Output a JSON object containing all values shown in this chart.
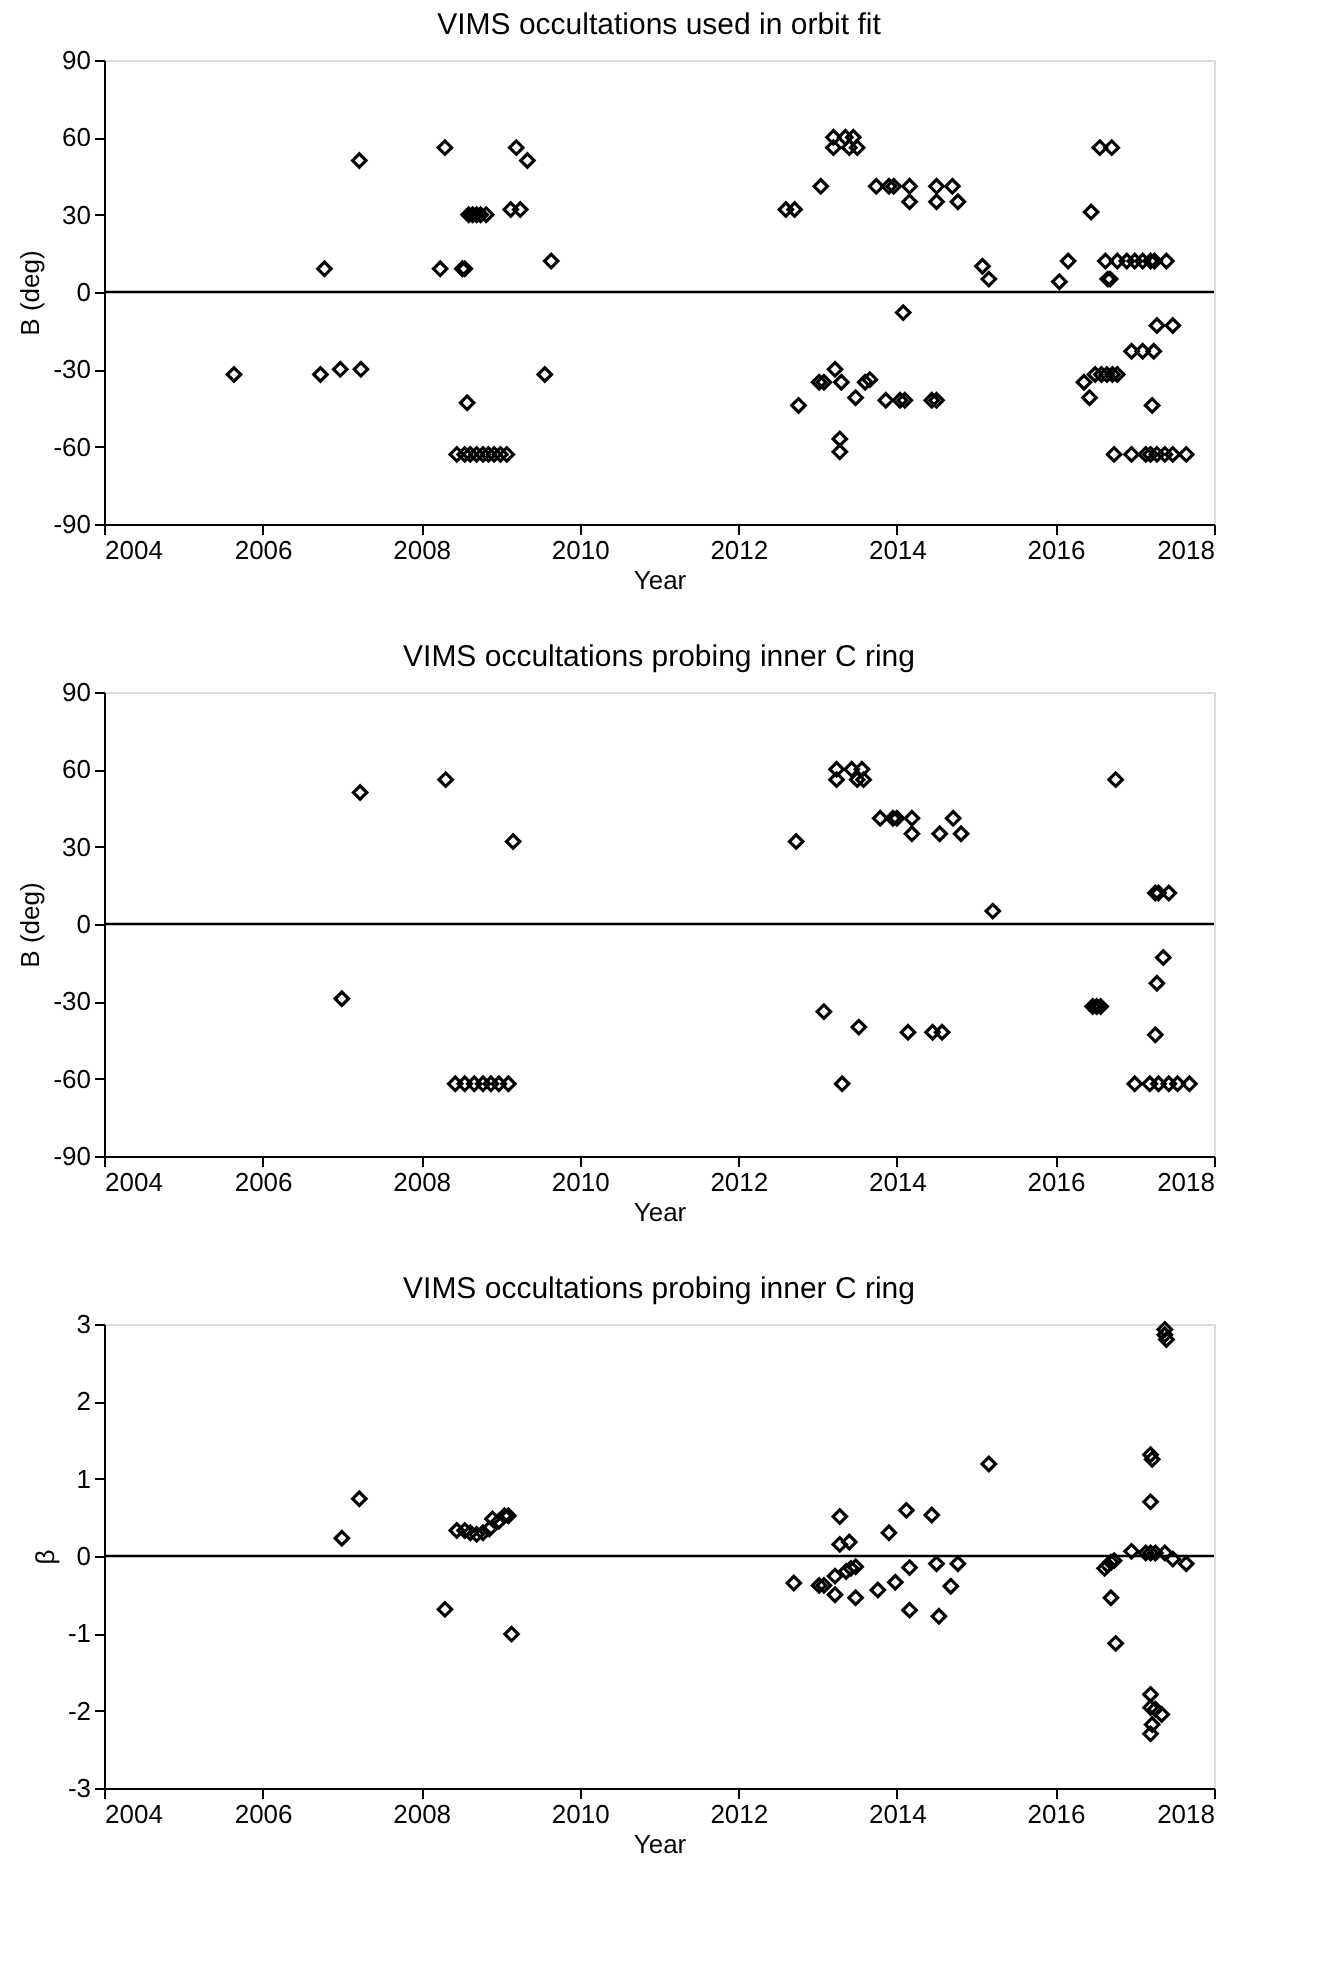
{
  "chart_data": [
    {
      "type": "scatter",
      "title": "VIMS occultations used in orbit fit",
      "xlabel": "Year",
      "ylabel": "B (deg)",
      "marker": "diamond",
      "grid": false,
      "xlim": [
        2004,
        2018
      ],
      "xticks": [
        2004,
        2006,
        2008,
        2010,
        2012,
        2014,
        2016,
        2018
      ],
      "ylim": [
        -90,
        90
      ],
      "yticks": [
        -90,
        -60,
        -30,
        0,
        30,
        60,
        90
      ],
      "ref_lines": [
        {
          "axis": "y",
          "value": 0,
          "color": "#000000"
        }
      ],
      "series": [
        {
          "color": "#000000",
          "x": [
            2005.64,
            2006.78,
            2006.73,
            2006.98,
            2007.22,
            2007.24,
            2008.3,
            2008.24,
            2008.52,
            2008.55,
            2008.58,
            2008.6,
            2008.65,
            2008.7,
            2008.75,
            2008.82,
            2008.45,
            2008.55,
            2008.62,
            2008.7,
            2008.78,
            2008.85,
            2008.92,
            2009.0,
            2009.08,
            2009.2,
            2009.34,
            2009.13,
            2009.25,
            2009.64,
            2009.56,
            2012.6,
            2012.71,
            2012.76,
            2013.04,
            2013.2,
            2013.2,
            2013.35,
            2013.4,
            2013.5,
            2013.45,
            2013.02,
            2013.08,
            2013.22,
            2013.3,
            2013.28,
            2013.28,
            2013.48,
            2013.6,
            2013.66,
            2013.74,
            2013.9,
            2013.96,
            2013.86,
            2014.04,
            2014.1,
            2014.08,
            2014.16,
            2014.16,
            2014.5,
            2014.5,
            2014.7,
            2014.77,
            2014.44,
            2014.5,
            2015.08,
            2015.16,
            2016.05,
            2016.16,
            2016.45,
            2016.36,
            2016.43,
            2016.5,
            2016.58,
            2016.65,
            2016.72,
            2016.78,
            2016.56,
            2016.71,
            2016.63,
            2016.78,
            2016.9,
            2017.0,
            2017.1,
            2017.2,
            2017.25,
            2017.4,
            2016.66,
            2016.69,
            2016.96,
            2017.1,
            2017.24,
            2017.28,
            2017.48,
            2017.22,
            2016.74,
            2016.96,
            2017.14,
            2017.2,
            2017.28,
            2017.38,
            2017.48,
            2017.65
          ],
          "values": [
            -32,
            9,
            -32,
            -30,
            51,
            -30,
            56,
            9,
            9,
            9,
            -43,
            30,
            30,
            30,
            30,
            30,
            -63,
            -63,
            -63,
            -63,
            -63,
            -63,
            -63,
            -63,
            -63,
            56,
            51,
            32,
            32,
            12,
            -32,
            32,
            32,
            -44,
            41,
            60,
            56,
            60,
            56,
            56,
            60,
            -35,
            -35,
            -30,
            -35,
            -57,
            -62,
            -41,
            -35,
            -34,
            41,
            41,
            41,
            -42,
            -42,
            -42,
            -8,
            41,
            35,
            41,
            35,
            41,
            35,
            -42,
            -42,
            10,
            5,
            4,
            12,
            31,
            -35,
            -41,
            -32,
            -32,
            -32,
            -32,
            -32,
            56,
            56,
            12,
            12,
            12,
            12,
            12,
            12,
            12,
            12,
            5,
            5,
            -23,
            -23,
            -23,
            -13,
            -13,
            -44,
            -63,
            -63,
            -63,
            -63,
            -63,
            -63,
            -63,
            -63
          ]
        }
      ]
    },
    {
      "type": "scatter",
      "title": "VIMS occultations probing inner C ring",
      "xlabel": "Year",
      "ylabel": "B (deg)",
      "marker": "diamond",
      "grid": false,
      "xlim": [
        2004,
        2018
      ],
      "xticks": [
        2004,
        2006,
        2008,
        2010,
        2012,
        2014,
        2016,
        2018
      ],
      "ylim": [
        -90,
        90
      ],
      "yticks": [
        -90,
        -60,
        -30,
        0,
        30,
        60,
        90
      ],
      "ref_lines": [
        {
          "axis": "y",
          "value": 0,
          "color": "#000000"
        }
      ],
      "series": [
        {
          "color": "#000000",
          "x": [
            2007.0,
            2007.23,
            2008.31,
            2009.16,
            2008.43,
            2008.55,
            2008.67,
            2008.78,
            2008.88,
            2008.98,
            2009.1,
            2012.73,
            2013.24,
            2013.24,
            2013.43,
            2013.56,
            2013.5,
            2013.58,
            2013.08,
            2013.31,
            2013.52,
            2013.79,
            2013.95,
            2014.0,
            2014.19,
            2014.19,
            2014.14,
            2014.45,
            2014.57,
            2014.54,
            2014.71,
            2014.81,
            2015.21,
            2016.47,
            2016.52,
            2016.57,
            2016.76,
            2017.26,
            2017.3,
            2017.43,
            2017.36,
            2017.28,
            2017.26,
            2017.0,
            2017.19,
            2017.3,
            2017.43,
            2017.54,
            2017.69
          ],
          "values": [
            -29,
            51,
            56,
            32,
            -62,
            -62,
            -62,
            -62,
            -62,
            -62,
            -62,
            32,
            60,
            56,
            60,
            60,
            56,
            56,
            -34,
            -62,
            -40,
            41,
            41,
            41,
            41,
            35,
            -42,
            -42,
            -42,
            35,
            41,
            35,
            5,
            -32,
            -32,
            -32,
            56,
            12,
            12,
            12,
            -13,
            -23,
            -43,
            -62,
            -62,
            -62,
            -62,
            -62,
            -62
          ]
        }
      ]
    },
    {
      "type": "scatter",
      "title": "VIMS occultations probing inner C ring",
      "xlabel": "Year",
      "ylabel": "β",
      "marker": "diamond",
      "grid": false,
      "xlim": [
        2004,
        2018
      ],
      "xticks": [
        2004,
        2006,
        2008,
        2010,
        2012,
        2014,
        2016,
        2018
      ],
      "ylim": [
        -3,
        3
      ],
      "yticks": [
        -3,
        -2,
        -1,
        0,
        1,
        2,
        3
      ],
      "ref_lines": [
        {
          "axis": "y",
          "value": 0,
          "color": "#000000"
        }
      ],
      "series": [
        {
          "color": "#000000",
          "x": [
            2007.0,
            2007.22,
            2008.3,
            2009.14,
            2008.45,
            2008.55,
            2008.62,
            2008.7,
            2008.78,
            2008.86,
            2008.9,
            2008.98,
            2009.05,
            2009.1,
            2012.7,
            2013.02,
            2013.08,
            2013.22,
            2013.22,
            2013.28,
            2013.28,
            2013.4,
            2013.36,
            2013.42,
            2013.48,
            2013.48,
            2013.76,
            2013.9,
            2013.98,
            2014.12,
            2014.16,
            2014.16,
            2014.44,
            2014.5,
            2014.53,
            2014.68,
            2014.77,
            2015.16,
            2016.62,
            2016.66,
            2016.7,
            2016.74,
            2016.7,
            2016.76,
            2016.96,
            2017.14,
            2017.2,
            2017.26,
            2017.38,
            2017.48,
            2017.65,
            2017.2,
            2017.2,
            2017.22,
            2017.38,
            2017.4,
            2017.38,
            2017.2,
            2017.2,
            2017.26,
            2017.34,
            2017.2,
            2017.22
          ],
          "values": [
            0.23,
            0.74,
            -0.69,
            -1.01,
            0.33,
            0.33,
            0.3,
            0.28,
            0.3,
            0.35,
            0.48,
            0.45,
            0.52,
            0.52,
            -0.35,
            -0.38,
            -0.38,
            -0.26,
            -0.5,
            0.51,
            0.15,
            0.18,
            -0.2,
            -0.16,
            -0.14,
            -0.54,
            -0.44,
            0.3,
            -0.34,
            0.59,
            -0.15,
            -0.7,
            0.53,
            -0.1,
            -0.78,
            -0.39,
            -0.1,
            1.19,
            -0.16,
            -0.12,
            -0.08,
            -0.06,
            -0.54,
            -1.13,
            0.06,
            0.04,
            0.04,
            0.04,
            0.04,
            -0.04,
            -0.1,
            0.7,
            1.31,
            1.25,
            2.86,
            2.8,
            2.93,
            -1.79,
            -1.96,
            -1.98,
            -2.05,
            -2.3,
            -2.18
          ]
        }
      ]
    }
  ]
}
